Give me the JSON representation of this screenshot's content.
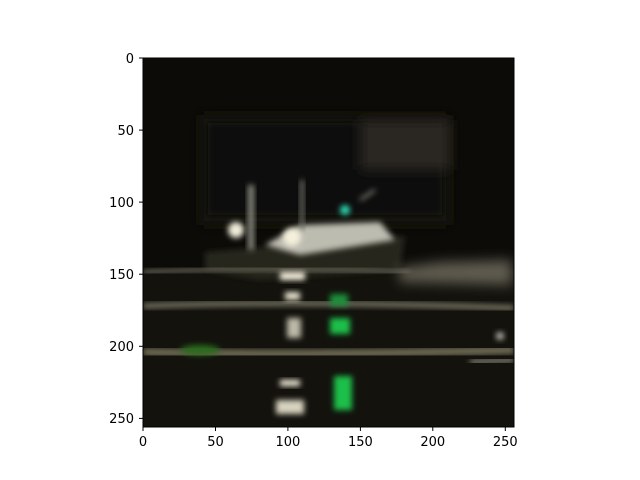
{
  "figure": {
    "image_description": "",
    "x_axis": {
      "ticks": [
        "0",
        "50",
        "100",
        "150",
        "200",
        "250"
      ],
      "range": [
        0,
        256
      ]
    },
    "y_axis": {
      "ticks": [
        "0",
        "50",
        "100",
        "150",
        "200",
        "250"
      ],
      "range": [
        0,
        256
      ]
    },
    "colors": {
      "background": "#ffffff",
      "night": "#0d0c09",
      "water": "#15140f",
      "boat_hull": "#2a2a26",
      "boat_cabin": "#cfcfc6",
      "boat_light_white": "#f4f0dc",
      "boat_light_green": "#2fe0b6",
      "reflection_green": "#1fbf4a",
      "reflection_white": "#f7f2df",
      "water_streak": "#7d7a68"
    }
  }
}
